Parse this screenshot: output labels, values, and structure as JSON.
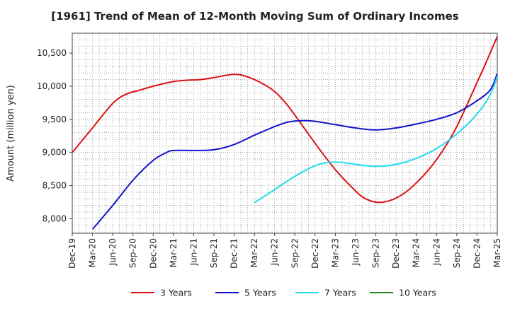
{
  "chart_data": {
    "type": "line",
    "title": "[1961]  Trend of Mean of 12-Month Moving Sum of Ordinary Incomes",
    "ylabel": "Amount (million yen)",
    "xlabel": "",
    "ylim": [
      7780,
      10800
    ],
    "yticks": [
      8000,
      8500,
      9000,
      9500,
      10000,
      10500
    ],
    "ytick_labels": [
      "8,000",
      "8,500",
      "9,000",
      "9,500",
      "10,000",
      "10,500"
    ],
    "x_start": "Dec-19",
    "x_months": 63,
    "xtick_labels": [
      "Dec-19",
      "Mar-20",
      "Jun-20",
      "Sep-20",
      "Dec-20",
      "Mar-21",
      "Jun-21",
      "Sep-21",
      "Dec-21",
      "Mar-22",
      "Jun-22",
      "Sep-22",
      "Dec-22",
      "Mar-23",
      "Jun-23",
      "Sep-23",
      "Dec-23",
      "Mar-24",
      "Jun-24",
      "Sep-24",
      "Dec-24",
      "Mar-25"
    ],
    "grid": true,
    "legend_position": "bottom",
    "series": [
      {
        "name": "3 Years",
        "color": "#dd1111",
        "points": [
          [
            0,
            9000
          ],
          [
            3,
            9370
          ],
          [
            6,
            9740
          ],
          [
            8,
            9880
          ],
          [
            10,
            9940
          ],
          [
            12,
            10000
          ],
          [
            15,
            10070
          ],
          [
            17,
            10090
          ],
          [
            19,
            10100
          ],
          [
            21,
            10130
          ],
          [
            24,
            10180
          ],
          [
            26,
            10140
          ],
          [
            28,
            10050
          ],
          [
            30,
            9920
          ],
          [
            32,
            9700
          ],
          [
            35,
            9280
          ],
          [
            37,
            9000
          ],
          [
            39,
            8740
          ],
          [
            41,
            8520
          ],
          [
            43,
            8330
          ],
          [
            45,
            8250
          ],
          [
            47,
            8270
          ],
          [
            49,
            8370
          ],
          [
            51,
            8540
          ],
          [
            53,
            8760
          ],
          [
            55,
            9040
          ],
          [
            57,
            9390
          ],
          [
            59,
            9830
          ],
          [
            61,
            10280
          ],
          [
            63,
            10750
          ]
        ]
      },
      {
        "name": "5 Years",
        "color": "#1111cc",
        "points": [
          [
            3,
            7840
          ],
          [
            6,
            8200
          ],
          [
            9,
            8580
          ],
          [
            12,
            8880
          ],
          [
            14,
            9000
          ],
          [
            15,
            9030
          ],
          [
            18,
            9030
          ],
          [
            21,
            9040
          ],
          [
            24,
            9120
          ],
          [
            27,
            9260
          ],
          [
            30,
            9390
          ],
          [
            32,
            9460
          ],
          [
            34,
            9480
          ],
          [
            36,
            9470
          ],
          [
            39,
            9420
          ],
          [
            42,
            9370
          ],
          [
            45,
            9340
          ],
          [
            48,
            9370
          ],
          [
            51,
            9430
          ],
          [
            54,
            9500
          ],
          [
            57,
            9600
          ],
          [
            60,
            9780
          ],
          [
            62,
            9950
          ],
          [
            63,
            10190
          ]
        ]
      },
      {
        "name": "7 Years",
        "color": "#22ddee",
        "points": [
          [
            27,
            8240
          ],
          [
            30,
            8440
          ],
          [
            33,
            8640
          ],
          [
            36,
            8800
          ],
          [
            38,
            8850
          ],
          [
            40,
            8850
          ],
          [
            42,
            8820
          ],
          [
            45,
            8790
          ],
          [
            48,
            8820
          ],
          [
            51,
            8910
          ],
          [
            54,
            9060
          ],
          [
            57,
            9280
          ],
          [
            60,
            9580
          ],
          [
            62,
            9880
          ],
          [
            63,
            10150
          ]
        ]
      },
      {
        "name": "10 Years",
        "color": "#228822",
        "points": []
      }
    ]
  }
}
